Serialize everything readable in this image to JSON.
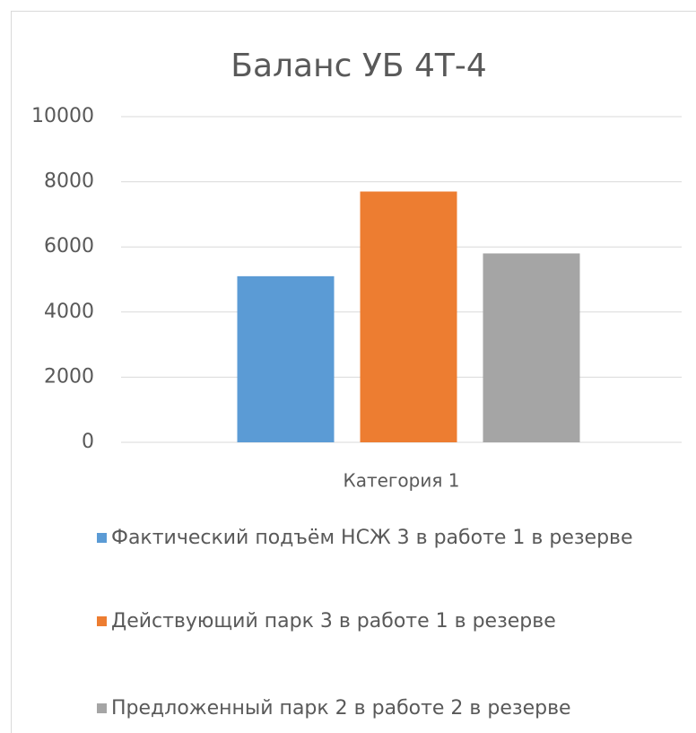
{
  "chart_data": {
    "type": "bar",
    "title": "Баланс УБ 4Т-4",
    "categories": [
      "Категория 1"
    ],
    "series": [
      {
        "name": "Фактический подъём НСЖ 3 в работе 1 в резерве",
        "color": "#5b9bd5",
        "values": [
          5100
        ]
      },
      {
        "name": "Действующий парк 3 в работе 1 в резерве",
        "color": "#ed7d31",
        "values": [
          7700
        ]
      },
      {
        "name": "Предложенный парк 2 в работе 2 в резерве",
        "color": "#a5a5a5",
        "values": [
          5800
        ]
      }
    ],
    "ylim": [
      0,
      10000
    ],
    "yticks": [
      0,
      2000,
      4000,
      6000,
      8000,
      10000
    ],
    "grid": true,
    "legend": "bottom"
  }
}
